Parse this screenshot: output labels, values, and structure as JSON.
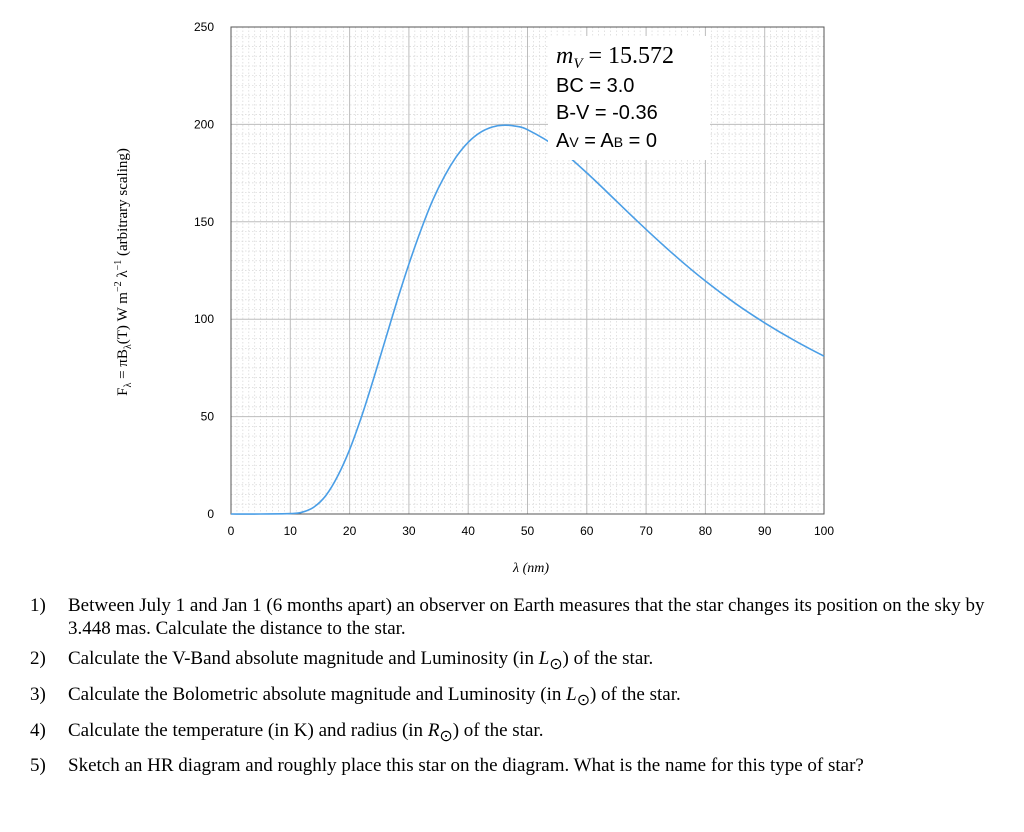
{
  "chart_data": {
    "type": "line",
    "title": "",
    "xlabel": "λ (nm)",
    "ylabel_parts": [
      "F",
      "λ",
      " = πB",
      "λ",
      "(T) W m",
      "−2",
      " λ",
      "−1",
      "   (arbitrary scaling)"
    ],
    "xlim": [
      0,
      100
    ],
    "ylim": [
      0,
      250
    ],
    "x_ticks": [
      "0",
      "10",
      "20",
      "30",
      "40",
      "50",
      "60",
      "70",
      "80",
      "90",
      "100"
    ],
    "y_ticks": [
      "0",
      "50",
      "100",
      "150",
      "200",
      "250"
    ],
    "grid": true,
    "series": [
      {
        "color": "#4a9ee6",
        "x": [
          0,
          5,
          10,
          12,
          14,
          16,
          18,
          20,
          22,
          24,
          26,
          28,
          30,
          32,
          34,
          36,
          38,
          40,
          42,
          44,
          46,
          48,
          50,
          55,
          60,
          65,
          70,
          75,
          80,
          85,
          90,
          95,
          100
        ],
        "y": [
          0,
          0,
          0.2,
          0.9,
          3.6,
          9.5,
          19.5,
          33,
          49.9,
          69,
          89.2,
          109.3,
          128.3,
          145.6,
          161,
          173.4,
          183.4,
          190.8,
          195.8,
          198.6,
          199.6,
          199.1,
          197.3,
          188.2,
          175.1,
          160.6,
          146.1,
          132.3,
          119.6,
          108.2,
          98.1,
          89.1,
          81
        ]
      }
    ],
    "annotation": {
      "mv_symbol": "m",
      "mv_sub": "V",
      "mv_value": " = 15.572",
      "bc": "BC = 3.0",
      "bv": "B-V = -0.36",
      "av_sym": "A",
      "av_sub": "V",
      "ab_mid": " = A",
      "ab_sub": "B",
      "ab_end": " = 0"
    }
  },
  "questions": [
    {
      "num": "1)",
      "text": "Between July 1 and Jan 1  (6 months apart) an observer on Earth measures that the star changes its position on the sky by 3.448 mas. Calculate the distance to the star."
    },
    {
      "num": "2)",
      "pre": "Calculate the V-Band absolute magnitude and Luminosity (in ",
      "sym": "L",
      "sub": "⊙",
      "post": ") of the star."
    },
    {
      "num": "3)",
      "pre": "Calculate the Bolometric absolute magnitude and Luminosity (in ",
      "sym": "L",
      "sub": "⊙",
      "post": ") of the star."
    },
    {
      "num": "4)",
      "pre": "Calculate the temperature (in K) and radius (in ",
      "sym": "R",
      "sub": "⊙",
      "post": ") of the star."
    },
    {
      "num": "5)",
      "text": "Sketch an HR diagram and roughly place this star on the diagram.  What is the name for this type of star?"
    }
  ]
}
